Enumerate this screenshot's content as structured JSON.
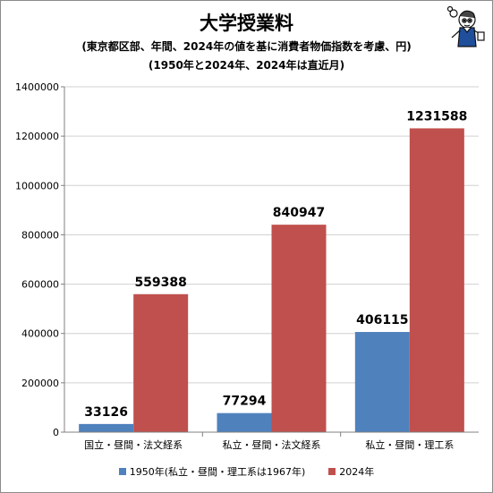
{
  "title": "大学授業料",
  "subtitle": "(東京都区部、年間、2024年の値を基に消費者物価指数を考慮、円)",
  "subtitle2": "(1950年と2024年、2024年は直近月)",
  "colors": {
    "series1": "#4f81bd",
    "series2": "#c0504d",
    "grid": "#d0d0d0",
    "axis": "#808080"
  },
  "mascot_icon": "mascot-icon",
  "chart_data": {
    "type": "bar",
    "categories": [
      "国立・昼間・法文経系",
      "私立・昼間・法文経系",
      "私立・昼間・理工系"
    ],
    "series": [
      {
        "name": "1950年(私立・昼間・理工系は1967年)",
        "values": [
          33126,
          77294,
          406115
        ]
      },
      {
        "name": "2024年",
        "values": [
          559388,
          840947,
          1231588
        ]
      }
    ],
    "yticks": [
      "0",
      "200000",
      "400000",
      "600000",
      "800000",
      "1000000",
      "1200000",
      "1400000"
    ],
    "ylim": [
      0,
      1400000
    ],
    "grid": true,
    "legend_position": "bottom"
  }
}
